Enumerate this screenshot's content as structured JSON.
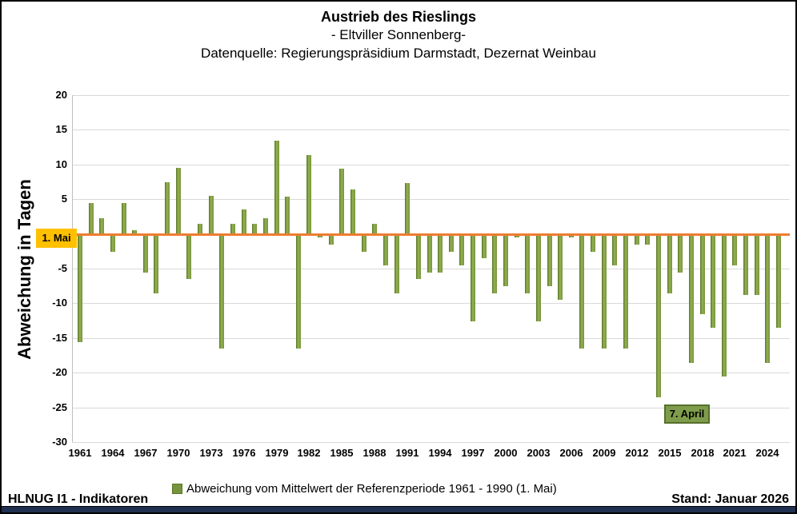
{
  "title": {
    "line1": "Austrieb des Rieslings",
    "line2": "- Eltviller Sonnenberg-",
    "line3": "Datenquelle: Regierungspräsidium Darmstadt, Dezernat Weinbau"
  },
  "y_axis": {
    "title": "Abweichung in Tagen"
  },
  "baseline_label": "1. Mai",
  "annotation": {
    "label": "7. April"
  },
  "legend": {
    "label": "Abweichung vom Mittelwert der Referenzperiode 1961 - 1990 (1. Mai)"
  },
  "footer": {
    "left": "HLNUG I1 - Indikatoren",
    "right": "Stand: Januar 2026"
  },
  "colors": {
    "bar_green": "#77933C",
    "bar_green_light": "#93B252",
    "bar_green_dark": "#5A7526",
    "baseline_orange": "#ED7D31",
    "mai_label_bg": "#FFC000",
    "april_label_bg": "#7E9C4B",
    "april_label_border": "#55702C",
    "grid": "#D9D9D9",
    "bottom_bar": "#1F3050"
  },
  "chart_data": {
    "type": "bar",
    "title": "Austrieb des Rieslings - Eltviller Sonnenberg",
    "xlabel": "",
    "ylabel": "Abweichung in Tagen",
    "ylim": [
      -30,
      20
    ],
    "grid": true,
    "legend_position": "bottom",
    "baseline": {
      "value": 0,
      "label": "1. Mai"
    },
    "annotation": {
      "label": "7. April",
      "year": 2014
    },
    "y_ticks": [
      20,
      15,
      10,
      5,
      -5,
      -10,
      -15,
      -20,
      -25,
      -30
    ],
    "x_tick_years": [
      1961,
      1964,
      1967,
      1970,
      1973,
      1976,
      1979,
      1982,
      1985,
      1988,
      1991,
      1994,
      1997,
      2000,
      2003,
      2006,
      2009,
      2012,
      2015,
      2018,
      2021,
      2024
    ],
    "categories": [
      1961,
      1962,
      1963,
      1964,
      1965,
      1966,
      1967,
      1968,
      1969,
      1970,
      1971,
      1972,
      1973,
      1974,
      1975,
      1976,
      1977,
      1978,
      1979,
      1980,
      1981,
      1982,
      1983,
      1984,
      1985,
      1986,
      1987,
      1988,
      1989,
      1990,
      1991,
      1992,
      1993,
      1994,
      1995,
      1996,
      1997,
      1998,
      1999,
      2000,
      2001,
      2002,
      2003,
      2004,
      2005,
      2006,
      2007,
      2008,
      2009,
      2010,
      2011,
      2012,
      2013,
      2014,
      2015,
      2016,
      2017,
      2018,
      2019,
      2020,
      2021,
      2022,
      2023,
      2024,
      2025
    ],
    "values": [
      -15.5,
      4.5,
      2.3,
      -2.5,
      4.5,
      0.5,
      -5.5,
      -8.5,
      7.5,
      9.5,
      -6.5,
      1.5,
      5.5,
      -16.5,
      1.5,
      3.5,
      1.5,
      2.3,
      13.4,
      5.4,
      -16.5,
      11.4,
      -0.5,
      -1.5,
      9.4,
      6.4,
      -2.5,
      1.5,
      -4.5,
      -8.5,
      7.3,
      -6.5,
      -5.5,
      -5.5,
      -2.5,
      -4.5,
      -12.5,
      -3.5,
      -8.5,
      -7.5,
      -0.5,
      -8.5,
      -12.5,
      -7.5,
      -9.5,
      -0.5,
      -16.5,
      -2.5,
      -16.5,
      -4.5,
      -16.5,
      -1.5,
      -1.5,
      -23.5,
      -8.5,
      -5.5,
      -18.5,
      -11.5,
      -13.5,
      -20.5,
      -4.5,
      -8.7,
      -8.7,
      -18.5,
      -13.5
    ]
  }
}
